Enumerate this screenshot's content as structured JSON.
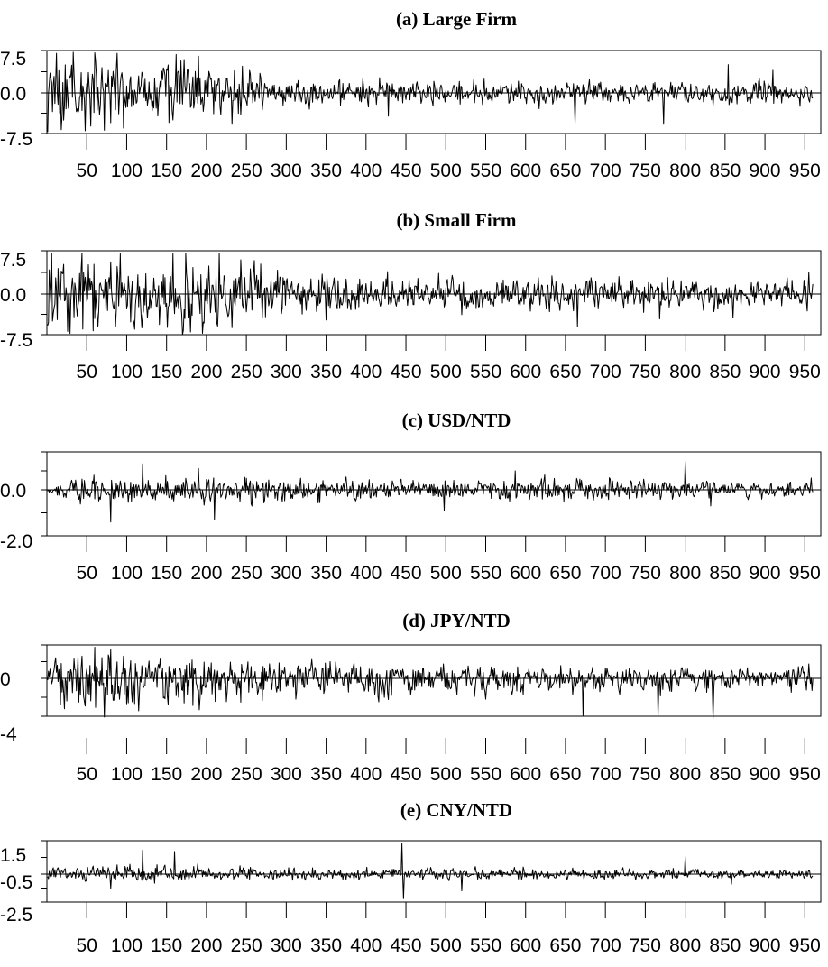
{
  "chart_data": [
    {
      "type": "line",
      "title": "(a) Large Firm",
      "xlabel": "",
      "ylabel": "",
      "x_tick_labels": [
        "50",
        "100",
        "150",
        "200",
        "250",
        "300",
        "350",
        "400",
        "450",
        "500",
        "550",
        "600",
        "650",
        "700",
        "750",
        "800",
        "850",
        "900",
        "950"
      ],
      "y_tick_labels": [
        "7.5",
        "0.0",
        "-7.5"
      ],
      "ylim": [
        -7.5,
        7.5
      ],
      "xlim": [
        0,
        970
      ],
      "series": [
        {
          "x_start": 1,
          "x_end": 960,
          "n_points": 960,
          "seed": 11,
          "profile": [
            {
              "x": 1,
              "amplitude": 3.6
            },
            {
              "x": 200,
              "amplitude": 3.2
            },
            {
              "x": 300,
              "amplitude": 1.3
            },
            {
              "x": 960,
              "amplitude": 1.2
            }
          ],
          "extremes": [
            {
              "x": 12,
              "value": 7.0
            },
            {
              "x": 18,
              "value": -6.8
            },
            {
              "x": 33,
              "value": 7.2
            },
            {
              "x": 48,
              "value": -7.0
            },
            {
              "x": 60,
              "value": 7.1
            },
            {
              "x": 72,
              "value": -6.9
            },
            {
              "x": 88,
              "value": 7.0
            },
            {
              "x": 96,
              "value": -6.5
            },
            {
              "x": 162,
              "value": 6.8
            },
            {
              "x": 190,
              "value": 6.5
            },
            {
              "x": 232,
              "value": -5.8
            },
            {
              "x": 428,
              "value": -4.3
            },
            {
              "x": 662,
              "value": -5.6
            },
            {
              "x": 773,
              "value": -5.8
            },
            {
              "x": 854,
              "value": 5.0
            },
            {
              "x": 910,
              "value": 4.0
            }
          ]
        }
      ]
    },
    {
      "type": "line",
      "title": "(b) Small Firm",
      "xlabel": "",
      "ylabel": "",
      "x_tick_labels": [
        "50",
        "100",
        "150",
        "200",
        "250",
        "300",
        "350",
        "400",
        "450",
        "500",
        "550",
        "600",
        "650",
        "700",
        "750",
        "800",
        "850",
        "900",
        "950"
      ],
      "y_tick_labels": [
        "7.5",
        "0.0",
        "-7.5"
      ],
      "ylim": [
        -7.5,
        7.5
      ],
      "xlim": [
        0,
        970
      ],
      "series": [
        {
          "x_start": 1,
          "x_end": 960,
          "n_points": 960,
          "seed": 23,
          "profile": [
            {
              "x": 1,
              "amplitude": 3.8
            },
            {
              "x": 230,
              "amplitude": 3.5
            },
            {
              "x": 320,
              "amplitude": 1.8
            },
            {
              "x": 960,
              "amplitude": 1.5
            }
          ],
          "extremes": [
            {
              "x": 6,
              "value": 7.0
            },
            {
              "x": 26,
              "value": -6.9
            },
            {
              "x": 44,
              "value": 7.1
            },
            {
              "x": 58,
              "value": -6.8
            },
            {
              "x": 92,
              "value": 7.0
            },
            {
              "x": 110,
              "value": -6.5
            },
            {
              "x": 158,
              "value": 7.0
            },
            {
              "x": 180,
              "value": -7.0
            },
            {
              "x": 216,
              "value": 7.1
            },
            {
              "x": 232,
              "value": -6.2
            },
            {
              "x": 268,
              "value": 5.2
            },
            {
              "x": 350,
              "value": -4.8
            },
            {
              "x": 520,
              "value": -3.8
            },
            {
              "x": 665,
              "value": -6.0
            },
            {
              "x": 768,
              "value": -4.6
            },
            {
              "x": 860,
              "value": -4.4
            },
            {
              "x": 955,
              "value": 3.8
            }
          ]
        }
      ]
    },
    {
      "type": "line",
      "title": "(c) USD/NTD",
      "xlabel": "",
      "ylabel": "",
      "x_tick_labels": [
        "50",
        "100",
        "150",
        "200",
        "250",
        "300",
        "350",
        "400",
        "450",
        "500",
        "550",
        "600",
        "650",
        "700",
        "750",
        "800",
        "850",
        "900",
        "950"
      ],
      "y_tick_labels": [
        "0.0",
        "-2.0"
      ],
      "ylim": [
        -2.0,
        1.6
      ],
      "xlim": [
        0,
        970
      ],
      "series": [
        {
          "x_start": 1,
          "x_end": 960,
          "n_points": 960,
          "seed": 37,
          "profile": [
            {
              "x": 1,
              "amplitude": 0.06
            },
            {
              "x": 20,
              "amplitude": 0.3
            },
            {
              "x": 250,
              "amplitude": 0.32
            },
            {
              "x": 540,
              "amplitude": 0.22
            },
            {
              "x": 620,
              "amplitude": 0.3
            },
            {
              "x": 960,
              "amplitude": 0.2
            }
          ],
          "extremes": [
            {
              "x": 80,
              "value": -1.4
            },
            {
              "x": 120,
              "value": 1.1
            },
            {
              "x": 190,
              "value": 0.9
            },
            {
              "x": 210,
              "value": -1.3
            },
            {
              "x": 498,
              "value": -0.9
            },
            {
              "x": 587,
              "value": 0.8
            },
            {
              "x": 800,
              "value": 1.2
            },
            {
              "x": 832,
              "value": -0.7
            },
            {
              "x": 958,
              "value": 0.5
            }
          ]
        }
      ]
    },
    {
      "type": "line",
      "title": "(d) JPY/NTD",
      "xlabel": "",
      "ylabel": "",
      "x_tick_labels": [
        "50",
        "100",
        "150",
        "200",
        "250",
        "300",
        "350",
        "400",
        "450",
        "500",
        "550",
        "600",
        "650",
        "700",
        "750",
        "800",
        "850",
        "900",
        "950"
      ],
      "y_tick_labels": [
        "0",
        "-4"
      ],
      "ylim": [
        -4,
        3
      ],
      "xlim": [
        0,
        970
      ],
      "series": [
        {
          "x_start": 1,
          "x_end": 960,
          "n_points": 960,
          "seed": 53,
          "profile": [
            {
              "x": 1,
              "amplitude": 0.9
            },
            {
              "x": 60,
              "amplitude": 1.3
            },
            {
              "x": 150,
              "amplitude": 1.1
            },
            {
              "x": 540,
              "amplitude": 0.6
            },
            {
              "x": 960,
              "amplitude": 0.5
            }
          ],
          "extremes": [
            {
              "x": 60,
              "value": 2.8
            },
            {
              "x": 80,
              "value": 2.6
            },
            {
              "x": 72,
              "value": -2.6
            },
            {
              "x": 40,
              "value": -1.6
            },
            {
              "x": 550,
              "value": -1.4
            },
            {
              "x": 672,
              "value": -2.5
            },
            {
              "x": 766,
              "value": -2.5
            },
            {
              "x": 835,
              "value": -2.7
            },
            {
              "x": 955,
              "value": 1.3
            }
          ]
        }
      ]
    },
    {
      "type": "line",
      "title": "(e) CNY/NTD",
      "xlabel": "",
      "ylabel": "",
      "x_tick_labels": [
        "50",
        "100",
        "150",
        "200",
        "250",
        "300",
        "350",
        "400",
        "450",
        "500",
        "550",
        "600",
        "650",
        "700",
        "750",
        "800",
        "850",
        "900",
        "950"
      ],
      "y_tick_labels": [
        "1.5",
        "-0.5",
        "-2.5"
      ],
      "ylim": [
        -2.5,
        2.5
      ],
      "xlim": [
        0,
        970
      ],
      "series": [
        {
          "x_start": 1,
          "x_end": 960,
          "n_points": 960,
          "seed": 71,
          "profile": [
            {
              "x": 1,
              "amplitude": 0.25
            },
            {
              "x": 120,
              "amplitude": 0.45
            },
            {
              "x": 200,
              "amplitude": 0.3
            },
            {
              "x": 960,
              "amplitude": 0.22
            }
          ],
          "extremes": [
            {
              "x": 80,
              "value": -1.3
            },
            {
              "x": 120,
              "value": 1.8
            },
            {
              "x": 160,
              "value": 1.7
            },
            {
              "x": 445,
              "value": 2.3
            },
            {
              "x": 447,
              "value": -2.2
            },
            {
              "x": 520,
              "value": -1.5
            },
            {
              "x": 800,
              "value": 1.3
            },
            {
              "x": 858,
              "value": -0.9
            },
            {
              "x": 955,
              "value": 0.3
            }
          ]
        }
      ]
    }
  ]
}
